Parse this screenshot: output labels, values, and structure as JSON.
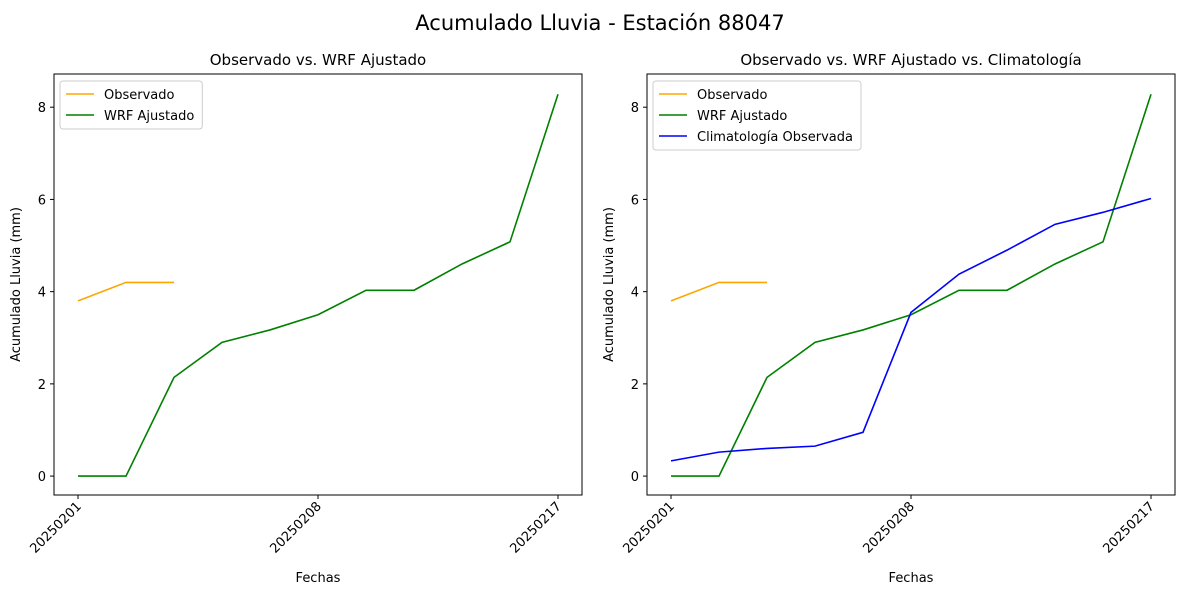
{
  "title": "Acumulado Lluvia - Estación 88047",
  "chart_data": [
    {
      "type": "line",
      "title": "Observado vs. WRF Ajustado",
      "x_label": "Fechas",
      "y_label": "Acumulado Lluvia (mm)",
      "categories": [
        "20250201",
        null,
        null,
        null,
        null,
        "20250208",
        null,
        null,
        null,
        null,
        "20250217"
      ],
      "series": [
        {
          "name": "Observado",
          "color": "#ffa500",
          "values": [
            3.8,
            4.2,
            4.2,
            null,
            null,
            null,
            null,
            null,
            null,
            null,
            null
          ]
        },
        {
          "name": "WRF Ajustado",
          "color": "#008000",
          "values": [
            0,
            0,
            2.14,
            2.9,
            3.17,
            3.5,
            4.03,
            4.03,
            4.6,
            5.08,
            8.28
          ]
        }
      ],
      "ylim": [
        -0.41,
        8.72
      ],
      "yticks": [
        0,
        2,
        4,
        6,
        8
      ],
      "legend": "upper left",
      "grid": false
    },
    {
      "type": "line",
      "title": "Observado vs. WRF Ajustado vs. Climatología",
      "x_label": "Fechas",
      "y_label": "Acumulado Lluvia (mm)",
      "categories": [
        "20250201",
        null,
        null,
        null,
        null,
        "20250208",
        null,
        null,
        null,
        null,
        "20250217"
      ],
      "series": [
        {
          "name": "Observado",
          "color": "#ffa500",
          "values": [
            3.8,
            4.2,
            4.2,
            null,
            null,
            null,
            null,
            null,
            null,
            null,
            null
          ]
        },
        {
          "name": "WRF Ajustado",
          "color": "#008000",
          "values": [
            0,
            0,
            2.14,
            2.9,
            3.17,
            3.5,
            4.03,
            4.03,
            4.6,
            5.08,
            8.28
          ]
        },
        {
          "name": "Climatología Observada",
          "color": "#0000ff",
          "values": [
            0.33,
            0.52,
            0.6,
            0.65,
            0.95,
            3.55,
            4.38,
            4.9,
            5.46,
            5.72,
            6.02
          ]
        }
      ],
      "ylim": [
        -0.41,
        8.72
      ],
      "yticks": [
        0,
        2,
        4,
        6,
        8
      ],
      "legend": "upper left",
      "grid": false
    }
  ]
}
